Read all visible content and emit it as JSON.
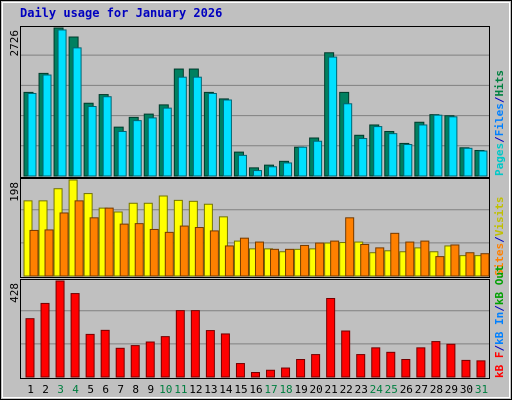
{
  "title": "Daily usage for January 2026",
  "colors": {
    "hits": "#00c8c8",
    "files": "#008040",
    "pages": "#00e0ff",
    "visits": "#ffff00",
    "sites": "#ff8000",
    "kbytes": "#ff0000",
    "kbin": "#0080ff",
    "kbout": "#00c000",
    "weekend_label": "#007f40",
    "title": "#0000c0",
    "panel_bg": "#c0c0c0"
  },
  "right_labels": {
    "top": [
      {
        "text": "Pages",
        "color": "#00c8c8"
      },
      {
        "text": "/",
        "color": "#0000c0"
      },
      {
        "text": "Files",
        "color": "#0080ff"
      },
      {
        "text": "/",
        "color": "#0000c0"
      },
      {
        "text": "Hits",
        "color": "#008040"
      }
    ],
    "middle": [
      {
        "text": "Sites",
        "color": "#ff8000"
      },
      {
        "text": "/",
        "color": "#0000c0"
      },
      {
        "text": "Visits",
        "color": "#c0c000"
      }
    ],
    "bottom": [
      {
        "text": "kB F",
        "color": "#ff0000"
      },
      {
        "text": "/",
        "color": "#0000c0"
      },
      {
        "text": "kB In",
        "color": "#0080ff"
      },
      {
        "text": "/",
        "color": "#0000c0"
      },
      {
        "text": "kB Out",
        "color": "#00a000"
      }
    ]
  },
  "chart_data": [
    {
      "type": "bar",
      "panel": "hits-files-pages",
      "ylabel": "2726",
      "ylim": [
        0,
        2726
      ],
      "categories": [
        "1",
        "2",
        "3",
        "4",
        "5",
        "6",
        "7",
        "8",
        "9",
        "10",
        "11",
        "12",
        "13",
        "14",
        "15",
        "16",
        "17",
        "18",
        "19",
        "20",
        "21",
        "22",
        "23",
        "24",
        "25",
        "26",
        "27",
        "28",
        "29",
        "30",
        "31"
      ],
      "weekend_days": [
        "3",
        "4",
        "10",
        "11",
        "17",
        "18",
        "24",
        "25",
        "31"
      ],
      "series": [
        {
          "name": "Hits",
          "values": [
            1540,
            1890,
            2726,
            2560,
            1340,
            1500,
            900,
            1080,
            1140,
            1310,
            1970,
            1970,
            1540,
            1420,
            440,
            150,
            200,
            270,
            530,
            700,
            2270,
            1540,
            750,
            940,
            820,
            600,
            990,
            1130,
            1110,
            520,
            470
          ]
        },
        {
          "name": "Files",
          "values": [
            1520,
            1860,
            2690,
            2360,
            1280,
            1460,
            820,
            1020,
            1070,
            1250,
            1820,
            1820,
            1520,
            1400,
            380,
            100,
            170,
            240,
            530,
            640,
            2190,
            1330,
            690,
            910,
            780,
            580,
            940,
            1120,
            1090,
            510,
            460
          ]
        },
        {
          "name": "Pages",
          "values": [
            1520,
            1860,
            2690,
            2360,
            1280,
            1460,
            820,
            1020,
            1070,
            1250,
            1820,
            1820,
            1520,
            1400,
            380,
            100,
            170,
            240,
            530,
            640,
            2190,
            1330,
            690,
            910,
            780,
            580,
            940,
            1120,
            1090,
            510,
            460
          ]
        }
      ]
    },
    {
      "type": "bar",
      "panel": "visits-sites",
      "ylabel": "198",
      "ylim": [
        0,
        198
      ],
      "categories": [
        "1",
        "2",
        "3",
        "4",
        "5",
        "6",
        "7",
        "8",
        "9",
        "10",
        "11",
        "12",
        "13",
        "14",
        "15",
        "16",
        "17",
        "18",
        "19",
        "20",
        "21",
        "22",
        "23",
        "24",
        "25",
        "26",
        "27",
        "28",
        "29",
        "30",
        "31"
      ],
      "series": [
        {
          "name": "Visits",
          "values": [
            155,
            155,
            180,
            198,
            170,
            140,
            132,
            150,
            150,
            165,
            156,
            154,
            148,
            122,
            72,
            56,
            56,
            50,
            55,
            56,
            68,
            69,
            70,
            48,
            52,
            50,
            58,
            50,
            62,
            42,
            42
          ]
        },
        {
          "name": "Sites",
          "values": [
            94,
            95,
            130,
            155,
            120,
            140,
            107,
            108,
            96,
            90,
            103,
            100,
            93,
            62,
            78,
            70,
            55,
            55,
            63,
            68,
            72,
            120,
            65,
            58,
            88,
            70,
            72,
            40,
            64,
            48,
            46
          ]
        }
      ]
    },
    {
      "type": "bar",
      "panel": "kbytes",
      "ylabel": "428",
      "ylim": [
        0,
        428
      ],
      "categories": [
        "1",
        "2",
        "3",
        "4",
        "5",
        "6",
        "7",
        "8",
        "9",
        "10",
        "11",
        "12",
        "13",
        "14",
        "15",
        "16",
        "17",
        "18",
        "19",
        "20",
        "21",
        "22",
        "23",
        "24",
        "25",
        "26",
        "27",
        "28",
        "29",
        "30",
        "31"
      ],
      "series": [
        {
          "name": "kB F",
          "values": [
            260,
            328,
            428,
            372,
            190,
            208,
            128,
            140,
            156,
            180,
            296,
            296,
            207,
            192,
            60,
            20,
            30,
            40,
            78,
            100,
            350,
            205,
            100,
            130,
            110,
            78,
            130,
            158,
            146,
            74,
            72
          ]
        }
      ]
    }
  ]
}
